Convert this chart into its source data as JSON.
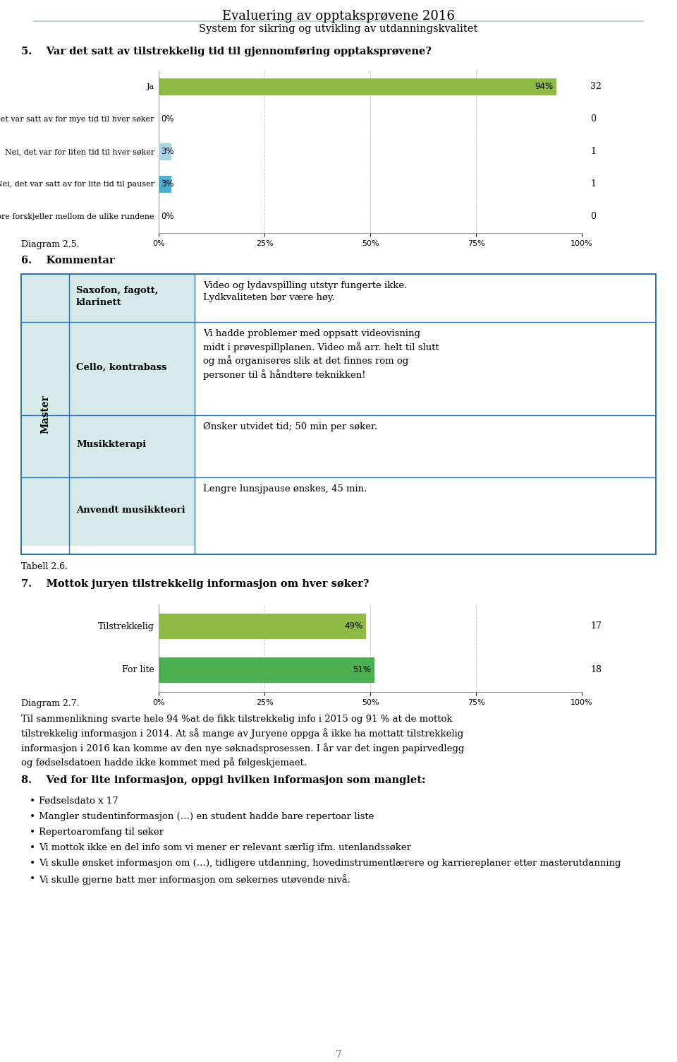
{
  "title": "Evaluering av opptaksprøvene 2016",
  "subtitle": "System for sikring og utvikling av utdanningskvalitet",
  "q5_title": "5.    Var det satt av tilstrekkelig tid til gjennomføring opptaksprøvene?",
  "q5_categories": [
    "Ja",
    "Det var satt av for mye tid til hver søker",
    "Nei, det var for liten tid til hver søker",
    "Nei, det var satt av for lite tid til pauser",
    "Det var store forskjeller mellom de ulike rundene"
  ],
  "q5_values": [
    94,
    0,
    3,
    3,
    0
  ],
  "q5_counts": [
    "32",
    "0",
    "1",
    "1",
    "0"
  ],
  "q5_colors": [
    "#8db946",
    "#ffffff",
    "#a8d4e6",
    "#4bafd4",
    "#ffffff"
  ],
  "q5_percent_labels": [
    "94%",
    "0%",
    "3%",
    "3%",
    "0%"
  ],
  "diagram25": "Diagram 2.5.",
  "section6_title": "6.    Kommentar",
  "table_master_label": "Master",
  "table_col1_items": [
    "Saxofon, fagott,\nklarinett",
    "Cello, kontrabass",
    "Musikkterapi",
    "Anvendt musikkteori"
  ],
  "table_col2_items": [
    "Video og lydavspilling utstyr fungerte ikke.\nLydkvaliteten bør være høy.",
    "Vi hadde problemer med oppsatt videovisning\nmidt i prøvespillplanen. Video må arr. helt til slutt\nog må organiseres slik at det finnes rom og\npersoner til å håndtere teknikken!",
    "Ønsker utvidet tid; 50 min per søker.",
    "Lengre lunsjpause ønskes, 45 min."
  ],
  "tabell26": "Tabell 2.6.",
  "q7_title": "7.    Mottok juryen tilstrekkelig informasjon om hver søker?",
  "q7_categories": [
    "Tilstrekkelig",
    "For lite"
  ],
  "q7_values": [
    49,
    51
  ],
  "q7_counts": [
    "17",
    "18"
  ],
  "q7_colors": [
    "#8db946",
    "#4caf50"
  ],
  "q7_percent_labels": [
    "49%",
    "51%"
  ],
  "diagram27": "Diagram 2.7.",
  "para_text": "Til sammenlikning svarte hele 94 %at de fikk tilstrekkelig info i 2015 og 91 % at de mottok\ntilstrekkelig informasjon i 2014. At så mange av Juryene oppga å ikke ha mottatt tilstrekkelig\ninformasjon i 2016 kan komme av den nye søknadsprosessen. I år var det ingen papirvedlegg\nog fødselsdatoen hadde ikke kommet med på følgeskjemaet.",
  "section8_title": "8.    Ved for lite informasjon, oppgi hvilken informasjon som manglet:",
  "bullet_points": [
    "Fødselsdato x 17",
    "Mangler studentinformasjon (…) en student hadde bare repertoar liste",
    "Repertoaromfang til søker",
    "Vi mottok ikke en del info som vi mener er relevant særlig ifm. utenlandssøker",
    "Vi skulle ønsket informasjon om (…), tidligere utdanning, hovedinstrumentlærere og karriereplaner etter masterutdanning",
    "Vi skulle gjerne hatt mer informasjon om søkernes utøvende nivå."
  ],
  "page_number": "7",
  "bg_color": "#ffffff",
  "grid_color": "#cccccc",
  "border_color": "#808080",
  "table_col0_bg": "#d5eae8",
  "table_col1_bg": "#d5eae8",
  "table_border_color": "#2e75b6",
  "header_line_color": "#b0c8c8",
  "page_num_color": "#4472c4"
}
